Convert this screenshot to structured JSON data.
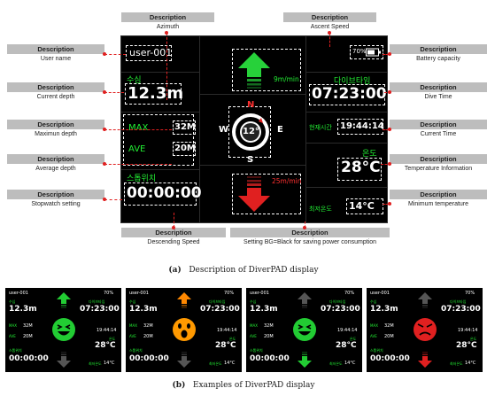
{
  "display": {
    "user": "user-001",
    "depth_label": "수심",
    "depth": "12.3m",
    "max_label": "MAX",
    "max_value": "32M",
    "ave_label": "AVE",
    "ave_value": "20M",
    "stopwatch_label": "스톱위치",
    "stopwatch": "00:00:00",
    "battery": "70%",
    "dive_time_label": "다이브타임",
    "dive_time": "07:23:00",
    "current_time_label": "현재시간",
    "current_time": "19:44:14",
    "temp_label": "온도",
    "temperature": "28°C",
    "min_temp_label": "최저온도",
    "min_temp": "14°C",
    "ascent_speed": "9m/min",
    "descent_speed": "25m/min",
    "compass": {
      "n": "N",
      "s": "S",
      "e": "E",
      "w": "W",
      "value": "12°"
    }
  },
  "callouts": {
    "header": "Description",
    "azimuth": "Azimuth",
    "ascent": "Ascent Speed",
    "user_name": "User name",
    "current_depth": "Current depth",
    "max_depth": "Maximun depth",
    "avg_depth": "Average depth",
    "stopwatch": "Stopwatch setting",
    "battery": "Battery capacity",
    "dive_time": "Dive Time",
    "current_time": "Current Time",
    "temperature": "Temperature Information",
    "min_temp": "Minimum temperature",
    "descending": "Descending Speed",
    "bg_setting": "Setting BG=Black for saving power consumption"
  },
  "captions": {
    "a_label": "(a)",
    "a_text": "Description of DiverPAD display",
    "b_label": "(b)",
    "b_text": "Examples of DiverPAD display"
  },
  "examples": [
    {
      "arrow_up_color": "#22cc33",
      "arrow_down_color": "#555555",
      "face_color": "#22cc33",
      "face": "laugh"
    },
    {
      "arrow_up_color": "#ff8800",
      "arrow_down_color": "#555555",
      "face_color": "#ff9900",
      "face": "shock"
    },
    {
      "arrow_up_color": "#555555",
      "arrow_down_color": "#22cc33",
      "face_color": "#22cc33",
      "face": "laugh"
    },
    {
      "arrow_up_color": "#555555",
      "arrow_down_color": "#e02020",
      "face_color": "#e02020",
      "face": "angry"
    }
  ],
  "thumb_text": {
    "user": "user-001",
    "battery": "70%",
    "depth": "12.3m",
    "dive_time": "07:23:00",
    "max": "32M",
    "ave": "20M",
    "max_label": "MAX",
    "ave_label": "AVE",
    "current_time": "19:44:14",
    "temperature": "28°C",
    "stopwatch": "00:00:00",
    "min_temp": "14°C",
    "depth_label": "수심",
    "dive_label": "다이브타임",
    "temp_label": "온도",
    "stopwatch_label": "스톱위치",
    "min_temp_label": "최저온도"
  }
}
